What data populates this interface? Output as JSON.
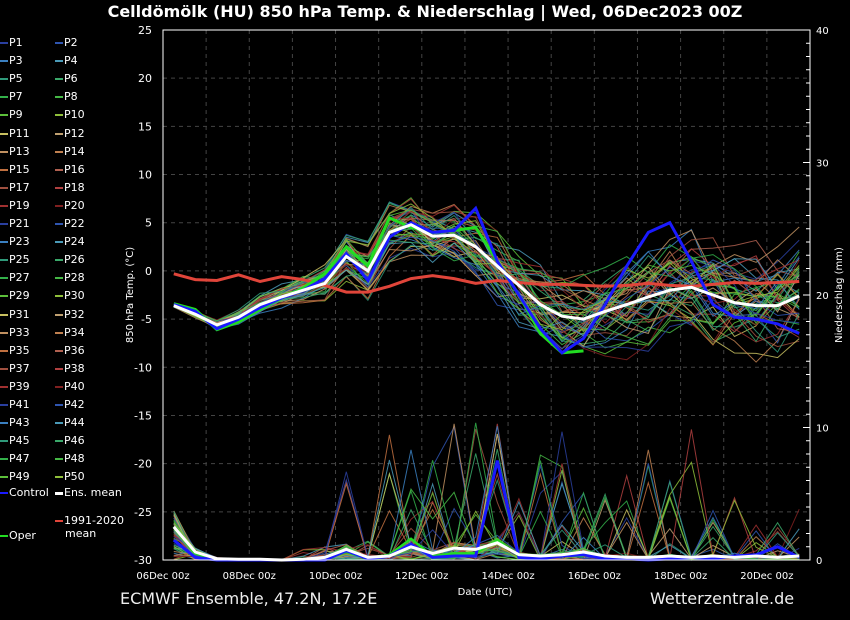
{
  "title": "Celldömölk  (HU)  850 hPa Temp. & Niederschlag | Wed, 06Dec2023 00Z",
  "footer_left": "ECMWF Ensemble, 47.2N, 17.2E",
  "footer_right": "Wetterzentrale.de",
  "legend": {
    "members": [
      "P1",
      "P2",
      "P3",
      "P4",
      "P5",
      "P6",
      "P7",
      "P8",
      "P9",
      "P10",
      "P11",
      "P12",
      "P13",
      "P14",
      "P15",
      "P16",
      "P17",
      "P18",
      "P19",
      "P20",
      "P21",
      "P22",
      "P23",
      "P24",
      "P25",
      "P26",
      "P27",
      "P28",
      "P29",
      "P30",
      "P31",
      "P32",
      "P33",
      "P34",
      "P35",
      "P36",
      "P37",
      "P38",
      "P39",
      "P40",
      "P41",
      "P42",
      "P43",
      "P44",
      "P45",
      "P46",
      "P47",
      "P48",
      "P49",
      "P50"
    ],
    "control": "Control",
    "ens_mean": "Ens. mean",
    "climate_line1": "1991-2020",
    "climate_line2": "mean",
    "oper": "Oper"
  },
  "colors": {
    "control": "#1a1aff",
    "ens_mean": "#ffffff",
    "climate": "#e0453a",
    "oper": "#22dd22",
    "member_palette": [
      "#2a3f9f",
      "#2f55b0",
      "#3a7fc0",
      "#4a9ab8",
      "#2f9a7a",
      "#3aa86a",
      "#33b04a",
      "#45b845",
      "#5cbf3a",
      "#8fbf3a",
      "#c8c060",
      "#c0a070",
      "#c09060",
      "#c08050",
      "#c07040",
      "#b06050",
      "#a05040",
      "#b04040",
      "#a03030",
      "#802020"
    ]
  },
  "chart_data": {
    "type": "line",
    "title": "Celldömölk  (HU)  850 hPa Temp. & Niederschlag | Wed, 06Dec2023 00Z",
    "xlabel": "Date (UTC)",
    "ylabel_left": "850 hPa Temp. (°C)",
    "ylabel_right": "Niederschlag (mm)",
    "x_unit": "hours since 06Dec2023 00z",
    "x_range_hours": [
      0,
      360
    ],
    "x_ticks": [
      {
        "hours": 0,
        "label": "06Dec 00z"
      },
      {
        "hours": 48,
        "label": "08Dec 00z"
      },
      {
        "hours": 96,
        "label": "10Dec 00z"
      },
      {
        "hours": 144,
        "label": "12Dec 00z"
      },
      {
        "hours": 192,
        "label": "14Dec 00z"
      },
      {
        "hours": 240,
        "label": "16Dec 00z"
      },
      {
        "hours": 288,
        "label": "18Dec 00z"
      },
      {
        "hours": 336,
        "label": "20Dec 00z"
      }
    ],
    "ylim_left": [
      -30,
      25
    ],
    "y_ticks_left": [
      25,
      20,
      15,
      10,
      5,
      0,
      -5,
      -10,
      -15,
      -20,
      -25,
      -30
    ],
    "ylim_right": [
      0,
      40
    ],
    "y_ticks_right": [
      40,
      30,
      20,
      10,
      0
    ],
    "grid": true,
    "legend_position": "left-outside",
    "x_hours": [
      6,
      18,
      30,
      42,
      54,
      66,
      78,
      90,
      102,
      114,
      126,
      138,
      150,
      162,
      174,
      186,
      198,
      210,
      222,
      234,
      246,
      258,
      270,
      282,
      294,
      306,
      318,
      330,
      342,
      354
    ],
    "temperature": {
      "ens_mean": [
        -3.6,
        -4.5,
        -5.6,
        -4.8,
        -3.5,
        -2.7,
        -2.0,
        -1.3,
        1.5,
        0.0,
        4.0,
        4.8,
        3.6,
        3.7,
        2.5,
        0.5,
        -1.5,
        -3.5,
        -4.7,
        -5.0,
        -4.2,
        -3.5,
        -2.7,
        -2.0,
        -1.7,
        -2.5,
        -3.3,
        -3.6,
        -3.6,
        -2.6
      ],
      "climate_mean_1991_2020": [
        -0.3,
        -0.9,
        -1.0,
        -0.4,
        -1.1,
        -0.6,
        -0.9,
        -1.5,
        -2.2,
        -2.2,
        -1.6,
        -0.8,
        -0.5,
        -0.8,
        -1.3,
        -1.0,
        -1.2,
        -1.4,
        -1.4,
        -1.5,
        -1.6,
        -1.5,
        -1.3,
        -1.5,
        -1.6,
        -1.4,
        -1.2,
        -1.3,
        -1.2,
        -1.1
      ],
      "control": [
        -3.5,
        -4.2,
        -6.0,
        -5.0,
        -3.8,
        -2.8,
        -2.0,
        -0.8,
        1.8,
        -1.0,
        3.5,
        5.0,
        4.0,
        4.2,
        6.5,
        1.0,
        -2.5,
        -6.0,
        -8.5,
        -7.0,
        -3.5,
        0.5,
        4.0,
        5.0,
        1.0,
        -3.5,
        -4.8,
        -5.0,
        -5.5,
        -6.5
      ],
      "oper": [
        -3.4,
        -4.0,
        -6.1,
        -5.3,
        -4.0,
        -2.8,
        -1.8,
        -0.3,
        2.5,
        0.5,
        5.5,
        4.5,
        4.0,
        4.2,
        4.5,
        1.0,
        -2.5,
        -6.5,
        -8.5,
        -8.3
      ],
      "member_spread_sd": [
        0.2,
        0.3,
        0.4,
        0.5,
        0.7,
        0.8,
        1.0,
        1.2,
        1.6,
        1.8,
        2.0,
        2.0,
        2.0,
        2.2,
        2.4,
        2.6,
        2.8,
        3.0,
        3.0,
        3.2,
        3.4,
        3.5,
        3.6,
        3.7,
        3.8,
        3.8,
        3.9,
        4.0,
        4.0,
        4.0
      ]
    },
    "precipitation_mm": {
      "ens_mean": [
        2.5,
        0.6,
        0.1,
        0.05,
        0.05,
        0.0,
        0.05,
        0.2,
        0.8,
        0.2,
        0.3,
        1.0,
        0.5,
        0.9,
        0.8,
        1.3,
        0.4,
        0.3,
        0.4,
        0.6,
        0.3,
        0.2,
        0.2,
        0.3,
        0.2,
        0.3,
        0.2,
        0.3,
        0.2,
        0.3
      ],
      "control": [
        1.5,
        0.2,
        0,
        0,
        0,
        0,
        0,
        0,
        0.7,
        0.1,
        0.3,
        1.2,
        0.2,
        0.3,
        0.3,
        7.5,
        0.2,
        0.1,
        0.3,
        0.4,
        0.1,
        0.1,
        0,
        0.1,
        0.2,
        0.1,
        0.3,
        0.4,
        1.0,
        0.2
      ],
      "oper": [
        2.5,
        0.5,
        0,
        0,
        0,
        0,
        0,
        0.1,
        0.6,
        0.1,
        0.4,
        1.6,
        0.3,
        0.5,
        0.5,
        1.5,
        0.3,
        0.2,
        0.3,
        0.3
      ],
      "member_max": [
        4.2,
        1.0,
        0.2,
        0.1,
        0.1,
        0.1,
        0.8,
        1.0,
        6.8,
        2.5,
        9.5,
        9.0,
        8.2,
        10.5,
        11.0,
        13.0,
        9.0,
        11.0,
        10.5,
        7.0,
        5.0,
        8.0,
        11.0,
        6.0,
        10.0,
        4.0,
        5.0,
        4.5,
        3.0,
        4.0
      ]
    }
  }
}
